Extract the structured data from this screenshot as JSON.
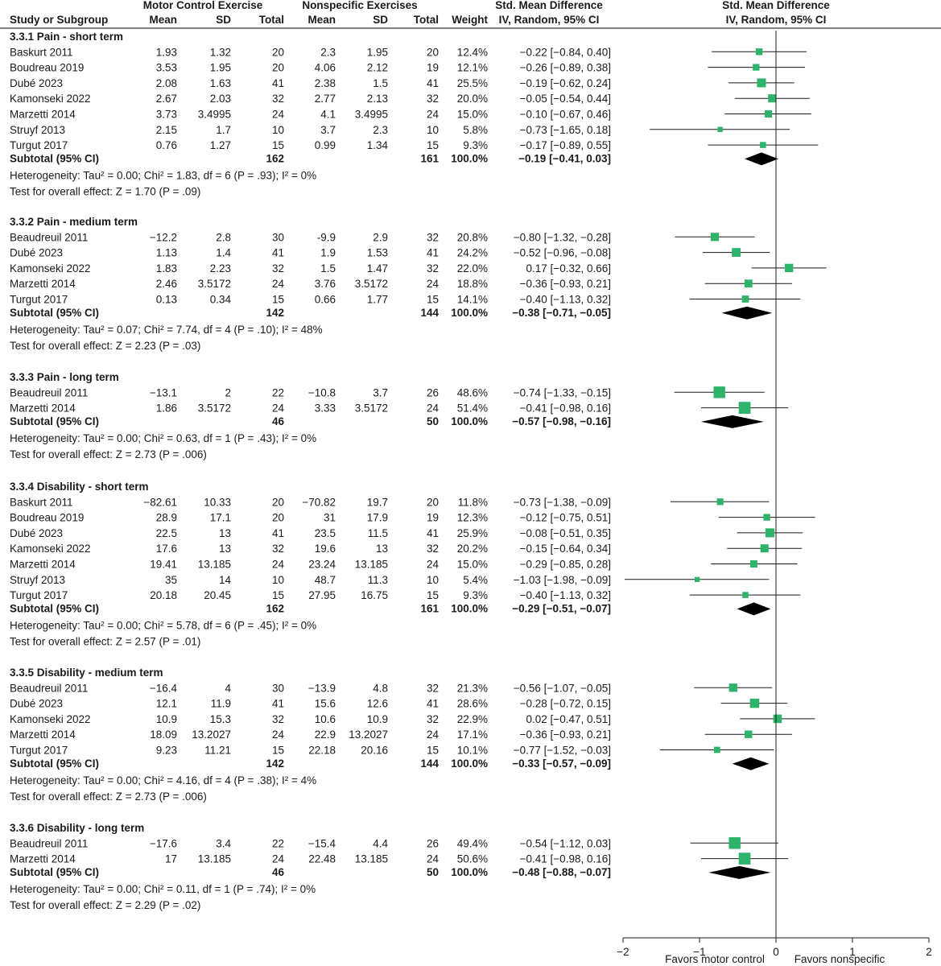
{
  "header": {
    "group1": "Motor Control Exercise",
    "group2": "Nonspecific Exercises",
    "smd_title": "Std. Mean Difference",
    "smd_sub": "IV, Random, 95% CI",
    "plot_title": "Std. Mean Difference",
    "plot_sub": "IV, Random, 95% CI",
    "columns": [
      "Study or Subgroup",
      "Mean",
      "SD",
      "Total",
      "Mean",
      "SD",
      "Total",
      "Weight"
    ]
  },
  "chart_data": {
    "type": "forest",
    "xlim": [
      -2,
      2
    ],
    "x_ticks": [
      "−2",
      "−1",
      "0",
      "1",
      "2"
    ],
    "favors_left": "Favors motor control",
    "favors_right": "Favors nonspecific",
    "square_color": "#2db36a",
    "diamond_color": "#000000",
    "subgroups": [
      {
        "title": "3.3.1 Pain - short term",
        "studies": [
          {
            "name": "Baskurt 2011",
            "m1": "1.93",
            "sd1": "1.32",
            "n1": "20",
            "m2": "2.3",
            "sd2": "1.95",
            "n2": "20",
            "w": "12.4%",
            "ci": "−0.22 [−0.84, 0.40]",
            "est": -0.22,
            "lo": -0.84,
            "hi": 0.4,
            "weight": 12.4
          },
          {
            "name": "Boudreau 2019",
            "m1": "3.53",
            "sd1": "1.95",
            "n1": "20",
            "m2": "4.06",
            "sd2": "2.12",
            "n2": "19",
            "w": "12.1%",
            "ci": "−0.26 [−0.89, 0.38]",
            "est": -0.26,
            "lo": -0.89,
            "hi": 0.38,
            "weight": 12.1
          },
          {
            "name": "Dubé 2023",
            "m1": "2.08",
            "sd1": "1.63",
            "n1": "41",
            "m2": "2.38",
            "sd2": "1.5",
            "n2": "41",
            "w": "25.5%",
            "ci": "−0.19 [−0.62, 0.24]",
            "est": -0.19,
            "lo": -0.62,
            "hi": 0.24,
            "weight": 25.5
          },
          {
            "name": "Kamonseki 2022",
            "m1": "2.67",
            "sd1": "2.03",
            "n1": "32",
            "m2": "2.77",
            "sd2": "2.13",
            "n2": "32",
            "w": "20.0%",
            "ci": "−0.05 [−0.54, 0.44]",
            "est": -0.05,
            "lo": -0.54,
            "hi": 0.44,
            "weight": 20.0
          },
          {
            "name": "Marzetti 2014",
            "m1": "3.73",
            "sd1": "3.4995",
            "n1": "24",
            "m2": "4.1",
            "sd2": "3.4995",
            "n2": "24",
            "w": "15.0%",
            "ci": "−0.10 [−0.67, 0.46]",
            "est": -0.1,
            "lo": -0.67,
            "hi": 0.46,
            "weight": 15.0
          },
          {
            "name": "Struyf 2013",
            "m1": "2.15",
            "sd1": "1.7",
            "n1": "10",
            "m2": "3.7",
            "sd2": "2.3",
            "n2": "10",
            "w": "5.8%",
            "ci": "−0.73 [−1.65, 0.18]",
            "est": -0.73,
            "lo": -1.65,
            "hi": 0.18,
            "weight": 5.8
          },
          {
            "name": "Turgut 2017",
            "m1": "0.76",
            "sd1": "1.27",
            "n1": "15",
            "m2": "0.99",
            "sd2": "1.34",
            "n2": "15",
            "w": "9.3%",
            "ci": "−0.17 [−0.89, 0.55]",
            "est": -0.17,
            "lo": -0.89,
            "hi": 0.55,
            "weight": 9.3
          }
        ],
        "subtotal": {
          "label": "Subtotal (95% CI)",
          "n1": "162",
          "n2": "161",
          "w": "100.0%",
          "ci": "−0.19 [−0.41, 0.03]",
          "est": -0.19,
          "lo": -0.41,
          "hi": 0.03
        },
        "heterogeneity": "Heterogeneity: Tau² = 0.00; Chi² = 1.83, df = 6 (P = .93); I² = 0%",
        "overall": "Test for overall effect: Z = 1.70 (P = .09)"
      },
      {
        "title": "3.3.2 Pain - medium term",
        "studies": [
          {
            "name": "Beaudreuil 2011",
            "m1": "−12.2",
            "sd1": "2.8",
            "n1": "30",
            "m2": "-9.9",
            "sd2": "2.9",
            "n2": "32",
            "w": "20.8%",
            "ci": "−0.80 [−1.32, −0.28]",
            "est": -0.8,
            "lo": -1.32,
            "hi": -0.28,
            "weight": 20.8
          },
          {
            "name": "Dubé 2023",
            "m1": "1.13",
            "sd1": "1.4",
            "n1": "41",
            "m2": "1.9",
            "sd2": "1.53",
            "n2": "41",
            "w": "24.2%",
            "ci": "−0.52 [−0.96, −0.08]",
            "est": -0.52,
            "lo": -0.96,
            "hi": -0.08,
            "weight": 24.2
          },
          {
            "name": "Kamonseki 2022",
            "m1": "1.83",
            "sd1": "2.23",
            "n1": "32",
            "m2": "1.5",
            "sd2": "1.47",
            "n2": "32",
            "w": "22.0%",
            "ci": "0.17 [−0.32, 0.66]",
            "est": 0.17,
            "lo": -0.32,
            "hi": 0.66,
            "weight": 22.0
          },
          {
            "name": "Marzetti 2014",
            "m1": "2.46",
            "sd1": "3.5172",
            "n1": "24",
            "m2": "3.76",
            "sd2": "3.5172",
            "n2": "24",
            "w": "18.8%",
            "ci": "−0.36 [−0.93, 0.21]",
            "est": -0.36,
            "lo": -0.93,
            "hi": 0.21,
            "weight": 18.8
          },
          {
            "name": "Turgut 2017",
            "m1": "0.13",
            "sd1": "0.34",
            "n1": "15",
            "m2": "0.66",
            "sd2": "1.77",
            "n2": "15",
            "w": "14.1%",
            "ci": "−0.40 [−1.13, 0.32]",
            "est": -0.4,
            "lo": -1.13,
            "hi": 0.32,
            "weight": 14.1
          }
        ],
        "subtotal": {
          "label": "Subtotal (95% CI)",
          "n1": "142",
          "n2": "144",
          "w": "100.0%",
          "ci": "−0.38 [−0.71, −0.05]",
          "est": -0.38,
          "lo": -0.71,
          "hi": -0.05
        },
        "heterogeneity": "Heterogeneity: Tau² = 0.07; Chi² = 7.74, df = 4 (P = .10); I² = 48%",
        "overall": "Test for overall effect: Z = 2.23 (P = .03)"
      },
      {
        "title": "3.3.3 Pain - long term",
        "studies": [
          {
            "name": "Beaudreuil 2011",
            "m1": "−13.1",
            "sd1": "2",
            "n1": "22",
            "m2": "−10.8",
            "sd2": "3.7",
            "n2": "26",
            "w": "48.6%",
            "ci": "−0.74 [−1.33, −0.15]",
            "est": -0.74,
            "lo": -1.33,
            "hi": -0.15,
            "weight": 48.6
          },
          {
            "name": "Marzetti 2014",
            "m1": "1.86",
            "sd1": "3.5172",
            "n1": "24",
            "m2": "3.33",
            "sd2": "3.5172",
            "n2": "24",
            "w": "51.4%",
            "ci": "−0.41 [−0.98, 0.16]",
            "est": -0.41,
            "lo": -0.98,
            "hi": 0.16,
            "weight": 51.4
          }
        ],
        "subtotal": {
          "label": "Subtotal (95% CI)",
          "n1": "46",
          "n2": "50",
          "w": "100.0%",
          "ci": "−0.57 [−0.98, −0.16]",
          "est": -0.57,
          "lo": -0.98,
          "hi": -0.16
        },
        "heterogeneity": "Heterogeneity: Tau² = 0.00; Chi² = 0.63, df = 1 (P = .43); I² = 0%",
        "overall": "Test for overall effect: Z = 2.73 (P = .006)"
      },
      {
        "title": "3.3.4 Disability - short term",
        "studies": [
          {
            "name": "Baskurt 2011",
            "m1": "−82.61",
            "sd1": "10.33",
            "n1": "20",
            "m2": "−70.82",
            "sd2": "19.7",
            "n2": "20",
            "w": "11.8%",
            "ci": "−0.73 [−1.38, −0.09]",
            "est": -0.73,
            "lo": -1.38,
            "hi": -0.09,
            "weight": 11.8
          },
          {
            "name": "Boudreau 2019",
            "m1": "28.9",
            "sd1": "17.1",
            "n1": "20",
            "m2": "31",
            "sd2": "17.9",
            "n2": "19",
            "w": "12.3%",
            "ci": "−0.12 [−0.75, 0.51]",
            "est": -0.12,
            "lo": -0.75,
            "hi": 0.51,
            "weight": 12.3
          },
          {
            "name": "Dubé 2023",
            "m1": "22.5",
            "sd1": "13",
            "n1": "41",
            "m2": "23.5",
            "sd2": "11.5",
            "n2": "41",
            "w": "25.9%",
            "ci": "−0.08 [−0.51, 0.35]",
            "est": -0.08,
            "lo": -0.51,
            "hi": 0.35,
            "weight": 25.9
          },
          {
            "name": "Kamonseki 2022",
            "m1": "17.6",
            "sd1": "13",
            "n1": "32",
            "m2": "19.6",
            "sd2": "13",
            "n2": "32",
            "w": "20.2%",
            "ci": "−0.15 [−0.64, 0.34]",
            "est": -0.15,
            "lo": -0.64,
            "hi": 0.34,
            "weight": 20.2
          },
          {
            "name": "Marzetti 2014",
            "m1": "19.41",
            "sd1": "13.185",
            "n1": "24",
            "m2": "23.24",
            "sd2": "13.185",
            "n2": "24",
            "w": "15.0%",
            "ci": "−0.29 [−0.85, 0.28]",
            "est": -0.29,
            "lo": -0.85,
            "hi": 0.28,
            "weight": 15.0
          },
          {
            "name": "Struyf 2013",
            "m1": "35",
            "sd1": "14",
            "n1": "10",
            "m2": "48.7",
            "sd2": "11.3",
            "n2": "10",
            "w": "5.4%",
            "ci": "−1.03 [−1.98, −0.09]",
            "est": -1.03,
            "lo": -1.98,
            "hi": -0.09,
            "weight": 5.4
          },
          {
            "name": "Turgut 2017",
            "m1": "20.18",
            "sd1": "20.45",
            "n1": "15",
            "m2": "27.95",
            "sd2": "16.75",
            "n2": "15",
            "w": "9.3%",
            "ci": "−0.40 [−1.13, 0.32]",
            "est": -0.4,
            "lo": -1.13,
            "hi": 0.32,
            "weight": 9.3
          }
        ],
        "subtotal": {
          "label": "Subtotal (95% CI)",
          "n1": "162",
          "n2": "161",
          "w": "100.0%",
          "ci": "−0.29 [−0.51, −0.07]",
          "est": -0.29,
          "lo": -0.51,
          "hi": -0.07
        },
        "heterogeneity": "Heterogeneity: Tau² = 0.00; Chi² = 5.78, df = 6 (P = .45); I² = 0%",
        "overall": "Test for overall effect: Z = 2.57 (P = .01)"
      },
      {
        "title": "3.3.5 Disability - medium term",
        "studies": [
          {
            "name": "Beaudreuil 2011",
            "m1": "−16.4",
            "sd1": "4",
            "n1": "30",
            "m2": "−13.9",
            "sd2": "4.8",
            "n2": "32",
            "w": "21.3%",
            "ci": "−0.56 [−1.07, −0.05]",
            "est": -0.56,
            "lo": -1.07,
            "hi": -0.05,
            "weight": 21.3
          },
          {
            "name": "Dubé 2023",
            "m1": "12.1",
            "sd1": "11.9",
            "n1": "41",
            "m2": "15.6",
            "sd2": "12.6",
            "n2": "41",
            "w": "28.6%",
            "ci": "−0.28 [−0.72, 0.15]",
            "est": -0.28,
            "lo": -0.72,
            "hi": 0.15,
            "weight": 28.6
          },
          {
            "name": "Kamonseki 2022",
            "m1": "10.9",
            "sd1": "15.3",
            "n1": "32",
            "m2": "10.6",
            "sd2": "10.9",
            "n2": "32",
            "w": "22.9%",
            "ci": "0.02 [−0.47, 0.51]",
            "est": 0.02,
            "lo": -0.47,
            "hi": 0.51,
            "weight": 22.9
          },
          {
            "name": "Marzetti 2014",
            "m1": "18.09",
            "sd1": "13.2027",
            "n1": "24",
            "m2": "22.9",
            "sd2": "13.2027",
            "n2": "24",
            "w": "17.1%",
            "ci": "−0.36 [−0.93, 0.21]",
            "est": -0.36,
            "lo": -0.93,
            "hi": 0.21,
            "weight": 17.1
          },
          {
            "name": "Turgut 2017",
            "m1": "9.23",
            "sd1": "11.21",
            "n1": "15",
            "m2": "22.18",
            "sd2": "20.16",
            "n2": "15",
            "w": "10.1%",
            "ci": "−0.77 [−1.52, −0.03]",
            "est": -0.77,
            "lo": -1.52,
            "hi": -0.03,
            "weight": 10.1
          }
        ],
        "subtotal": {
          "label": "Subtotal (95% CI)",
          "n1": "142",
          "n2": "144",
          "w": "100.0%",
          "ci": "−0.33 [−0.57, −0.09]",
          "est": -0.33,
          "lo": -0.57,
          "hi": -0.09
        },
        "heterogeneity": "Heterogeneity: Tau² = 0.00; Chi² = 4.16, df = 4 (P = .38); I² = 4%",
        "overall": "Test for overall effect: Z = 2.73 (P = .006)"
      },
      {
        "title": "3.3.6 Disability - long term",
        "studies": [
          {
            "name": "Beaudreuil 2011",
            "m1": "−17.6",
            "sd1": "3.4",
            "n1": "22",
            "m2": "−15.4",
            "sd2": "4.4",
            "n2": "26",
            "w": "49.4%",
            "ci": "−0.54 [−1.12, 0.03]",
            "est": -0.54,
            "lo": -1.12,
            "hi": 0.03,
            "weight": 49.4
          },
          {
            "name": "Marzetti 2014",
            "m1": "17",
            "sd1": "13.185",
            "n1": "24",
            "m2": "22.48",
            "sd2": "13.185",
            "n2": "24",
            "w": "50.6%",
            "ci": "−0.41 [−0.98, 0.16]",
            "est": -0.41,
            "lo": -0.98,
            "hi": 0.16,
            "weight": 50.6
          }
        ],
        "subtotal": {
          "label": "Subtotal (95% CI)",
          "n1": "46",
          "n2": "50",
          "w": "100.0%",
          "ci": "−0.48 [−0.88, −0.07]",
          "est": -0.48,
          "lo": -0.88,
          "hi": -0.07
        },
        "heterogeneity": "Heterogeneity: Tau² = 0.00; Chi² = 0.11, df = 1 (P = .74); I² = 0%",
        "overall": "Test for overall effect: Z = 2.29 (P = .02)"
      }
    ]
  }
}
